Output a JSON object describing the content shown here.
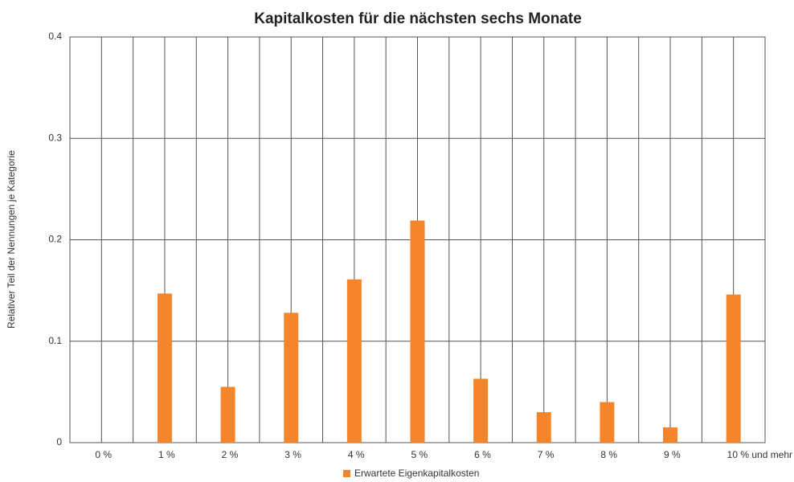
{
  "chart_data": {
    "type": "bar",
    "title": "Kapitalkosten für die nächsten sechs Monate",
    "y_label": "Relativer Teil der Nennungen je Kategorie",
    "categories": [
      "0 %",
      "1 %",
      "2 %",
      "3 %",
      "4 %",
      "5 %",
      "6 %",
      "7 %",
      "8 %",
      "9 %",
      "10 % und mehr"
    ],
    "series": [
      {
        "name": "Erwartete Eigenkapitalkosten",
        "color": "#f5852a",
        "values": [
          0,
          0.147,
          0.055,
          0.128,
          0.161,
          0.219,
          0.063,
          0.03,
          0.04,
          0.015,
          0.146
        ]
      }
    ],
    "ylim": [
      0,
      0.4
    ],
    "yticks": [
      0,
      0.1,
      0.2,
      0.3,
      0.4
    ],
    "grid": true,
    "legend": "bottom"
  }
}
